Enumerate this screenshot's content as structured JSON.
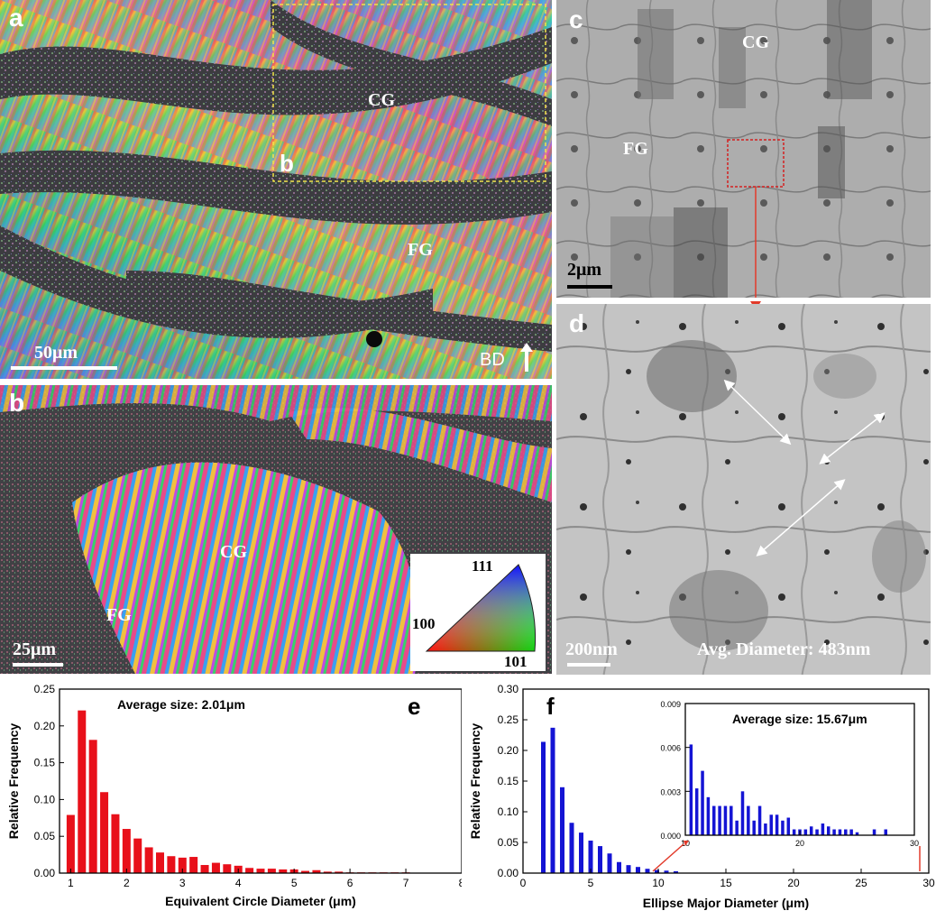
{
  "panel_a": {
    "label": "a",
    "region_cg": "CG",
    "region_fg": "FG",
    "inset_label": "b",
    "scale": "50μm",
    "direction": "BD"
  },
  "panel_b": {
    "label": "b",
    "region_cg": "CG",
    "region_fg": "FG",
    "scale": "25μm",
    "ipf_key": {
      "top": "111",
      "left": "100",
      "right": "101"
    }
  },
  "panel_c": {
    "label": "c",
    "region_cg": "CG",
    "region_fg": "FG",
    "scale": "2μm"
  },
  "panel_d": {
    "label": "d",
    "scale": "200nm",
    "annotation": "Avg. Diameter: 483nm"
  },
  "colors": {
    "bar_e": "#e8101a",
    "bar_f": "#1414d4",
    "arrow": "#e23a2a",
    "dashed_box": "#f2e34a",
    "red_box": "#d42020"
  },
  "chart_data": [
    {
      "panel": "e",
      "type": "bar",
      "title": "Average size: 2.01μm",
      "xlabel": "Equivalent Circle Diameter (μm)",
      "ylabel": "Relative Frequency",
      "xlim": [
        0.8,
        8
      ],
      "ylim": [
        0,
        0.25
      ],
      "x_ticks": [
        "1",
        "2",
        "3",
        "4",
        "5",
        "6",
        "7",
        "8"
      ],
      "y_ticks": [
        "0.00",
        "0.05",
        "0.10",
        "0.15",
        "0.20",
        "0.25"
      ],
      "x": [
        1.0,
        1.2,
        1.4,
        1.6,
        1.8,
        2.0,
        2.2,
        2.4,
        2.6,
        2.8,
        3.0,
        3.2,
        3.4,
        3.6,
        3.8,
        4.0,
        4.2,
        4.4,
        4.6,
        4.8,
        5.0,
        5.2,
        5.4,
        5.6,
        5.8,
        6.0,
        6.2,
        6.4,
        6.6,
        6.8,
        7.0
      ],
      "values": [
        0.079,
        0.221,
        0.181,
        0.11,
        0.08,
        0.06,
        0.047,
        0.035,
        0.028,
        0.023,
        0.021,
        0.022,
        0.011,
        0.014,
        0.012,
        0.01,
        0.007,
        0.006,
        0.006,
        0.005,
        0.005,
        0.003,
        0.004,
        0.002,
        0.002,
        0.001,
        0.001,
        0.001,
        0.001,
        0.001,
        0.001
      ]
    },
    {
      "panel": "f",
      "type": "bar",
      "xlabel": "Ellipse Major Diameter (μm)",
      "ylabel": "Relative Frequency",
      "xlim": [
        0,
        30
      ],
      "ylim": [
        0,
        0.3
      ],
      "x_ticks": [
        "0",
        "5",
        "10",
        "15",
        "20",
        "25",
        "30"
      ],
      "y_ticks": [
        "0.00",
        "0.05",
        "0.10",
        "0.15",
        "0.20",
        "0.25",
        "0.30"
      ],
      "x": [
        1.5,
        2.2,
        2.9,
        3.6,
        4.3,
        5.0,
        5.7,
        6.4,
        7.1,
        7.8,
        8.5,
        9.2,
        9.9,
        10.6,
        11.3
      ],
      "values": [
        0.214,
        0.237,
        0.14,
        0.082,
        0.066,
        0.053,
        0.044,
        0.032,
        0.018,
        0.013,
        0.01,
        0.007,
        0.005,
        0.004,
        0.003
      ],
      "inset": {
        "type": "bar",
        "title": "Average size: 15.67μm",
        "xlim": [
          10,
          30
        ],
        "ylim": [
          0,
          0.009
        ],
        "x_ticks": [
          "10",
          "20",
          "30"
        ],
        "y_ticks": [
          "0.000",
          "0.003",
          "0.006",
          "0.009"
        ],
        "x": [
          10.5,
          11,
          11.5,
          12,
          12.5,
          13,
          13.5,
          14,
          14.5,
          15,
          15.5,
          16,
          16.5,
          17,
          17.5,
          18,
          18.5,
          19,
          19.5,
          20,
          20.5,
          21,
          21.5,
          22,
          22.5,
          23,
          23.5,
          24,
          24.5,
          25,
          26.5,
          27.5
        ],
        "values": [
          0.0062,
          0.0032,
          0.0044,
          0.0026,
          0.002,
          0.002,
          0.002,
          0.002,
          0.001,
          0.003,
          0.002,
          0.001,
          0.002,
          0.0008,
          0.0014,
          0.0014,
          0.001,
          0.0012,
          0.0004,
          0.0004,
          0.0004,
          0.0006,
          0.0004,
          0.0008,
          0.0006,
          0.0004,
          0.0004,
          0.0004,
          0.0004,
          0.0002,
          0.0004,
          0.0004
        ]
      }
    }
  ]
}
